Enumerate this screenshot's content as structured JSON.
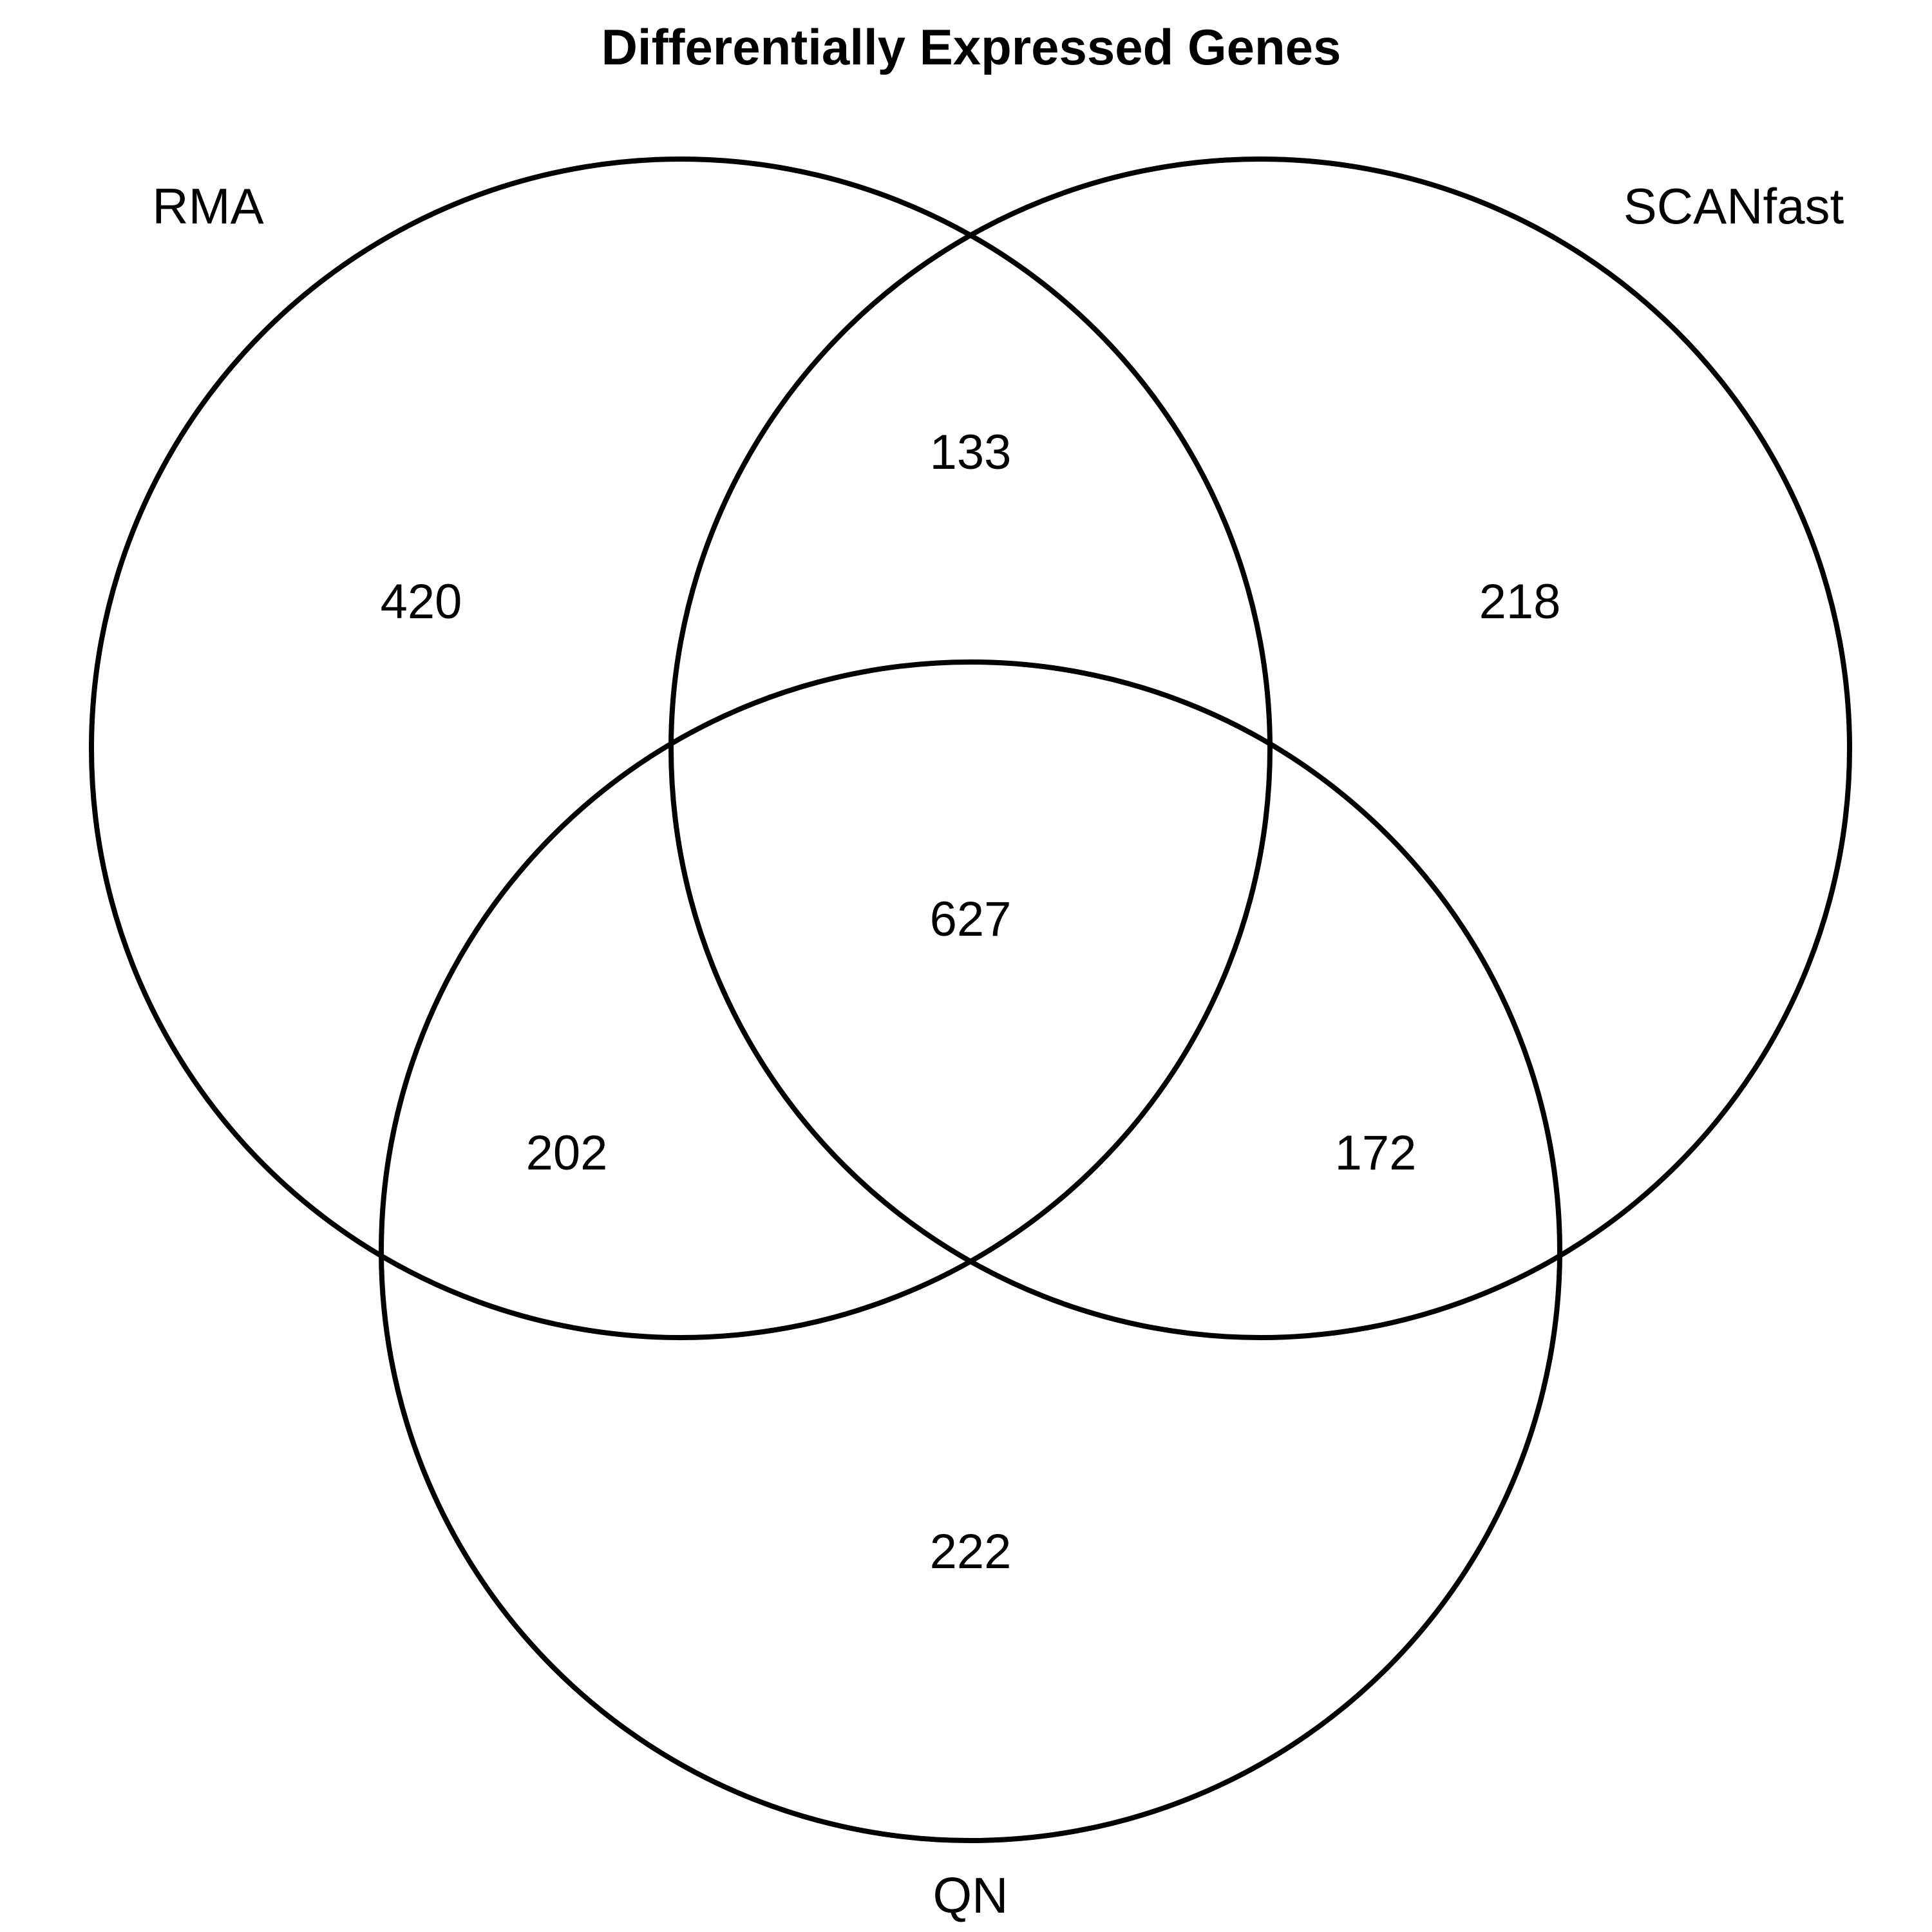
{
  "title": "Differentially Expressed Genes",
  "sets": {
    "rma": "RMA",
    "scanfast": "SCANfast",
    "qn": "QN"
  },
  "regions": {
    "rma_only": "420",
    "scanfast_only": "218",
    "qn_only": "222",
    "rma_scanfast": "133",
    "rma_qn": "202",
    "scanfast_qn": "172",
    "all_three": "627"
  },
  "colors": {
    "stroke": "#000000",
    "background": "#ffffff"
  }
}
